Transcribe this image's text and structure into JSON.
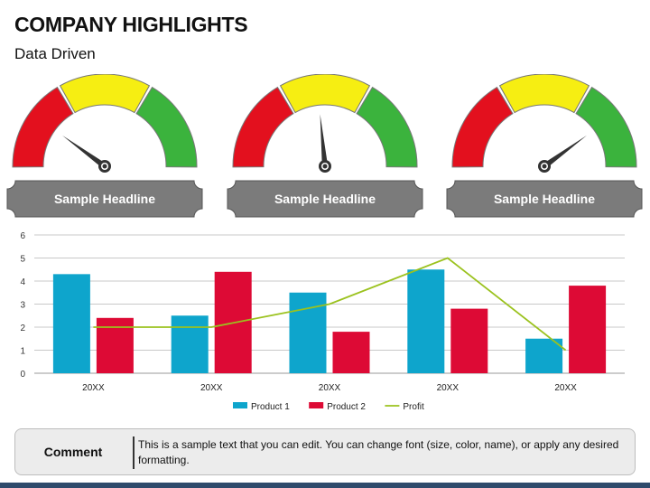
{
  "title": "COMPANY HIGHLIGHTS",
  "subtitle": "Data Driven",
  "gauges": [
    {
      "headline": "Sample Headline",
      "value": 0.2
    },
    {
      "headline": "Sample Headline",
      "value": 0.47
    },
    {
      "headline": "Sample Headline",
      "value": 0.8
    }
  ],
  "gauge_colors": {
    "low": "#e3101e",
    "mid": "#f6ee12",
    "high": "#3bb33d",
    "outline": "#777777",
    "headline_bg": "#7b7b7b"
  },
  "chart_data": {
    "type": "bar",
    "categories": [
      "20XX",
      "20XX",
      "20XX",
      "20XX",
      "20XX"
    ],
    "series": [
      {
        "name": "Product 1",
        "type": "bar",
        "color": "#0ea5cc",
        "values": [
          4.3,
          2.5,
          3.5,
          4.5,
          1.5
        ]
      },
      {
        "name": "Product 2",
        "type": "bar",
        "color": "#dd0a35",
        "values": [
          2.4,
          4.4,
          1.8,
          2.8,
          3.8
        ]
      },
      {
        "name": "Profit",
        "type": "line",
        "color": "#9bc21e",
        "values": [
          2,
          2,
          3,
          5,
          1
        ]
      }
    ],
    "ylim": [
      0,
      6
    ],
    "yticks": [
      "0",
      "1",
      "2",
      "3",
      "4",
      "5",
      "6"
    ],
    "grid": true,
    "legend_position": "bottom"
  },
  "comment": {
    "label": "Comment",
    "text": "This is a sample text that you can edit. You can change font (size, color, name), or apply any desired formatting."
  }
}
